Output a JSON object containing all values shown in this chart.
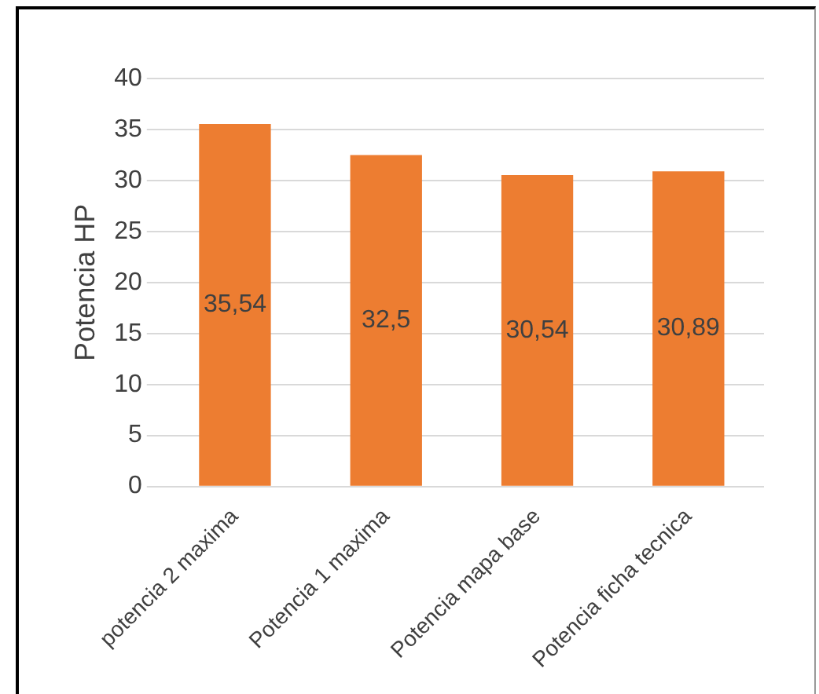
{
  "chart_data": {
    "type": "bar",
    "ylabel": "Potencia HP",
    "categories": [
      "potencia 2 maxima",
      "Potencia 1 maxima",
      "Potencia mapa base",
      "Potencia ficha tecnica"
    ],
    "values": [
      35.54,
      32.5,
      30.54,
      30.89
    ],
    "value_labels": [
      "35,54",
      "32,5",
      "30,54",
      "30,89"
    ],
    "color": "#ed7d31",
    "ylim": [
      0,
      40
    ],
    "yticks": [
      0,
      5,
      10,
      15,
      20,
      25,
      30,
      35,
      40
    ],
    "grid": "y",
    "legend": false
  }
}
